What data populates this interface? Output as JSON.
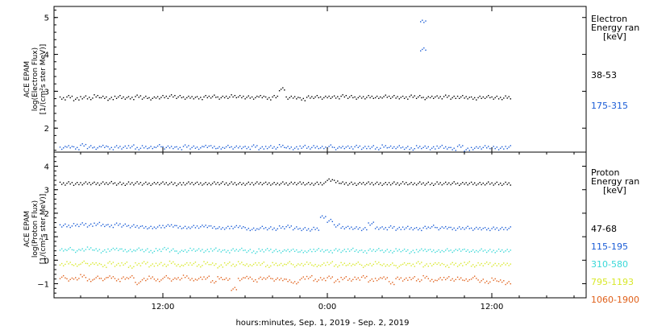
{
  "chart_data": [
    {
      "type": "scatter",
      "panel": "electron",
      "ylabel_lines": [
        "ACE EPAM",
        "log(Electron Flux)",
        "[1/(cm²s ster MeV)]"
      ],
      "ylim": [
        1.35,
        5.3
      ],
      "yticks": [
        2,
        3,
        4,
        5
      ],
      "legend": {
        "title_lines": [
          "Electron",
          "Energy ran",
          "[keV]"
        ],
        "placement": "right"
      },
      "series": [
        {
          "name": "38-53",
          "color": "#000000",
          "x": [
            0.0,
            0.5,
            1,
            1.5,
            2,
            2.5,
            3,
            3.5,
            4,
            4.5,
            5,
            5.5,
            6,
            6.5,
            7,
            7.5,
            8,
            8.5,
            9,
            9.5,
            10,
            10.5,
            11,
            11.5,
            12,
            12.5,
            13,
            13.5,
            14,
            14.5,
            15,
            15.5,
            16,
            16.5,
            17,
            17.5,
            18,
            18.5,
            19,
            19.5,
            20,
            20.5,
            21,
            21.5,
            22,
            22.5,
            23,
            23.5,
            24,
            24.5,
            25,
            25.5,
            26,
            26.5,
            27,
            27.5,
            28,
            28.5,
            29,
            29.5,
            30,
            30.5,
            31,
            31.5,
            32,
            32.5
          ],
          "y": [
            2.82,
            2.86,
            2.8,
            2.85,
            2.83,
            2.88,
            2.84,
            2.81,
            2.86,
            2.84,
            2.83,
            2.87,
            2.84,
            2.82,
            2.85,
            2.86,
            2.88,
            2.86,
            2.84,
            2.85,
            2.83,
            2.86,
            2.87,
            2.84,
            2.86,
            2.88,
            2.86,
            2.85,
            2.84,
            2.88,
            2.82,
            2.86,
            3.07,
            2.84,
            2.85,
            2.8,
            2.85,
            2.86,
            2.84,
            2.86,
            2.85,
            2.88,
            2.86,
            2.84,
            2.85,
            2.86,
            2.84,
            2.87,
            2.86,
            2.85,
            2.84,
            2.87,
            2.86,
            2.83,
            2.86,
            2.85,
            2.87,
            2.84,
            2.86,
            2.85,
            2.82,
            2.84,
            2.86,
            2.84,
            2.83,
            2.85
          ]
        },
        {
          "name": "175-315",
          "color": "#1a5cd6",
          "x": [
            0.0,
            0.5,
            1,
            1.5,
            2,
            2.5,
            3,
            3.5,
            4,
            4.5,
            5,
            5.5,
            6,
            6.5,
            7,
            7.5,
            8,
            8.5,
            9,
            9.5,
            10,
            10.5,
            11,
            11.5,
            12,
            12.5,
            13,
            13.5,
            14,
            14.5,
            15,
            15.5,
            16,
            16.5,
            17,
            17.5,
            18,
            18.5,
            19,
            19.5,
            20,
            20.5,
            21,
            21.5,
            22,
            22.5,
            23,
            23.5,
            24,
            24.5,
            25,
            25.5,
            26,
            26.5,
            27,
            27.5,
            28,
            28.5,
            29,
            29.5,
            30,
            30.5,
            31,
            31.5,
            32,
            32.5
          ],
          "y": [
            1.48,
            1.52,
            1.47,
            1.55,
            1.5,
            1.48,
            1.53,
            1.47,
            1.5,
            1.49,
            1.52,
            1.47,
            1.5,
            1.48,
            1.53,
            1.49,
            1.5,
            1.47,
            1.52,
            1.49,
            1.48,
            1.53,
            1.5,
            1.47,
            1.51,
            1.49,
            1.5,
            1.48,
            1.52,
            1.47,
            1.5,
            1.49,
            1.53,
            1.48,
            1.47,
            1.51,
            1.49,
            1.5,
            1.48,
            1.52,
            1.47,
            1.5,
            1.49,
            1.51,
            1.48,
            1.5,
            1.47,
            1.52,
            1.49,
            1.5,
            1.48,
            1.46,
            1.5,
            1.49,
            1.47,
            1.51,
            1.49,
            1.45,
            1.52,
            1.43,
            1.47,
            1.49,
            1.5,
            1.48,
            1.47,
            1.5
          ]
        },
        {
          "name": "",
          "color": "#1a5cd6",
          "x": [
            26.3,
            26.3
          ],
          "y": [
            4.9,
            4.15
          ]
        }
      ]
    },
    {
      "type": "scatter",
      "panel": "proton",
      "ylabel_lines": [
        "ACE EPAM",
        "log(Proton Flux)",
        "[1/(cm²s ster MeV)]"
      ],
      "ylim": [
        -1.6,
        4.6
      ],
      "yticks": [
        -1,
        0,
        1,
        2,
        3,
        4
      ],
      "xlabel": "hours:minutes, Sep.  1, 2019 - Sep.  2, 2019",
      "xticks": [
        {
          "hours": 6,
          "label": "12:00"
        },
        {
          "hours": 18,
          "label": "0:00"
        },
        {
          "hours": 30,
          "label": "12:00"
        }
      ],
      "xlim_hours": [
        0,
        30
      ],
      "data_hours_offset": 0,
      "legend": {
        "title_lines": [
          "Proton",
          "Energy ran",
          "[keV]"
        ],
        "placement": "right"
      },
      "series": [
        {
          "name": "47-68",
          "color": "#000000",
          "x": [
            0.0,
            0.5,
            1,
            1.5,
            2,
            2.5,
            3,
            3.5,
            4,
            4.5,
            5,
            5.5,
            6,
            6.5,
            7,
            7.5,
            8,
            8.5,
            9,
            9.5,
            10,
            10.5,
            11,
            11.5,
            12,
            12.5,
            13,
            13.5,
            14,
            14.5,
            15,
            15.5,
            16,
            16.5,
            17,
            17.5,
            18,
            18.5,
            19,
            19.5,
            20,
            20.5,
            21,
            21.5,
            22,
            22.5,
            23,
            23.5,
            24,
            24.5,
            25,
            25.5,
            26,
            26.5,
            27,
            27.5,
            28,
            28.5,
            29,
            29.5,
            30,
            30.5,
            31,
            31.5,
            32,
            32.5
          ],
          "y": [
            3.28,
            3.3,
            3.27,
            3.29,
            3.3,
            3.28,
            3.29,
            3.31,
            3.28,
            3.27,
            3.29,
            3.3,
            3.28,
            3.27,
            3.3,
            3.29,
            3.28,
            3.26,
            3.29,
            3.3,
            3.28,
            3.27,
            3.29,
            3.3,
            3.28,
            3.29,
            3.27,
            3.28,
            3.29,
            3.3,
            3.28,
            3.27,
            3.29,
            3.28,
            3.3,
            3.29,
            3.27,
            3.28,
            3.29,
            3.45,
            3.36,
            3.29,
            3.28,
            3.27,
            3.3,
            3.29,
            3.28,
            3.27,
            3.29,
            3.28,
            3.3,
            3.27,
            3.29,
            3.28,
            3.27,
            3.29,
            3.28,
            3.3,
            3.27,
            3.29,
            3.28,
            3.27,
            3.29,
            3.28,
            3.27,
            3.28
          ]
        },
        {
          "name": "115-195",
          "color": "#1a5cd6",
          "x": [
            0.0,
            0.5,
            1,
            1.5,
            2,
            2.5,
            3,
            3.5,
            4,
            4.5,
            5,
            5.5,
            6,
            6.5,
            7,
            7.5,
            8,
            8.5,
            9,
            9.5,
            10,
            10.5,
            11,
            11.5,
            12,
            12.5,
            13,
            13.5,
            14,
            14.5,
            15,
            15.5,
            16,
            16.5,
            17,
            17.5,
            18,
            18.5,
            19,
            19.5,
            20,
            20.5,
            21,
            21.5,
            22,
            22.5,
            23,
            23.5,
            24,
            24.5,
            25,
            25.5,
            26,
            26.5,
            27,
            27.5,
            28,
            28.5,
            29,
            29.5,
            30,
            30.5,
            31,
            31.5,
            32,
            32.5
          ],
          "y": [
            1.5,
            1.48,
            1.52,
            1.55,
            1.5,
            1.57,
            1.52,
            1.48,
            1.54,
            1.5,
            1.47,
            1.46,
            1.42,
            1.4,
            1.44,
            1.47,
            1.5,
            1.43,
            1.4,
            1.44,
            1.45,
            1.48,
            1.42,
            1.38,
            1.4,
            1.43,
            1.45,
            1.35,
            1.33,
            1.4,
            1.38,
            1.36,
            1.42,
            1.45,
            1.38,
            1.35,
            1.33,
            1.36,
            1.85,
            1.7,
            1.5,
            1.42,
            1.4,
            1.38,
            1.35,
            1.58,
            1.4,
            1.38,
            1.42,
            1.36,
            1.4,
            1.38,
            1.35,
            1.4,
            1.45,
            1.38,
            1.42,
            1.36,
            1.38,
            1.4,
            1.36,
            1.38,
            1.35,
            1.37,
            1.36,
            1.38
          ]
        },
        {
          "name": "310-580",
          "color": "#3ad8d8",
          "x": [
            0.0,
            0.5,
            1,
            1.5,
            2,
            2.5,
            3,
            3.5,
            4,
            4.5,
            5,
            5.5,
            6,
            6.5,
            7,
            7.5,
            8,
            8.5,
            9,
            9.5,
            10,
            10.5,
            11,
            11.5,
            12,
            12.5,
            13,
            13.5,
            14,
            14.5,
            15,
            15.5,
            16,
            16.5,
            17,
            17.5,
            18,
            18.5,
            19,
            19.5,
            20,
            20.5,
            21,
            21.5,
            22,
            22.5,
            23,
            23.5,
            24,
            24.5,
            25,
            25.5,
            26,
            26.5,
            27,
            27.5,
            28,
            28.5,
            29,
            29.5,
            30,
            30.5,
            31,
            31.5,
            32,
            32.5
          ],
          "y": [
            0.45,
            0.5,
            0.42,
            0.48,
            0.52,
            0.45,
            0.4,
            0.47,
            0.5,
            0.44,
            0.42,
            0.48,
            0.45,
            0.4,
            0.46,
            0.5,
            0.44,
            0.38,
            0.43,
            0.47,
            0.45,
            0.42,
            0.48,
            0.44,
            0.4,
            0.45,
            0.47,
            0.42,
            0.38,
            0.44,
            0.46,
            0.42,
            0.4,
            0.45,
            0.43,
            0.38,
            0.42,
            0.46,
            0.44,
            0.4,
            0.45,
            0.42,
            0.47,
            0.43,
            0.39,
            0.44,
            0.46,
            0.42,
            0.4,
            0.45,
            0.43,
            0.38,
            0.44,
            0.46,
            0.42,
            0.4,
            0.45,
            0.42,
            0.47,
            0.43,
            0.4,
            0.44,
            0.42,
            0.41,
            0.43,
            0.42
          ]
        },
        {
          "name": "795-1193",
          "color": "#d8e82a",
          "x": [
            0.0,
            0.5,
            1,
            1.5,
            2,
            2.5,
            3,
            3.5,
            4,
            4.5,
            5,
            5.5,
            6,
            6.5,
            7,
            7.5,
            8,
            8.5,
            9,
            9.5,
            10,
            10.5,
            11,
            11.5,
            12,
            12.5,
            13,
            13.5,
            14,
            14.5,
            15,
            15.5,
            16,
            16.5,
            17,
            17.5,
            18,
            18.5,
            19,
            19.5,
            20,
            20.5,
            21,
            21.5,
            22,
            22.5,
            23,
            23.5,
            24,
            24.5,
            25,
            25.5,
            26,
            26.5,
            27,
            27.5,
            28,
            28.5,
            29,
            29.5,
            30,
            30.5,
            31,
            31.5,
            32,
            32.5
          ],
          "y": [
            -0.15,
            -0.1,
            -0.2,
            -0.08,
            -0.15,
            -0.12,
            -0.22,
            -0.1,
            -0.18,
            -0.12,
            -0.25,
            -0.15,
            -0.1,
            -0.2,
            -0.14,
            -0.18,
            -0.08,
            -0.22,
            -0.15,
            -0.12,
            -0.2,
            -0.1,
            -0.16,
            -0.24,
            -0.12,
            -0.18,
            -0.1,
            -0.2,
            -0.15,
            -0.12,
            -0.22,
            -0.14,
            -0.18,
            -0.1,
            -0.2,
            -0.15,
            -0.12,
            -0.22,
            -0.16,
            -0.1,
            -0.2,
            -0.14,
            -0.18,
            -0.12,
            -0.22,
            -0.15,
            -0.1,
            -0.2,
            -0.16,
            -0.24,
            -0.12,
            -0.18,
            -0.1,
            -0.2,
            -0.15,
            -0.12,
            -0.22,
            -0.14,
            -0.18,
            -0.1,
            -0.2,
            -0.15,
            -0.12,
            -0.18,
            -0.16,
            -0.14
          ]
        },
        {
          "name": "1060-1900",
          "color": "#e0601a",
          "x": [
            0.0,
            0.5,
            1,
            1.5,
            2,
            2.5,
            3,
            3.5,
            4,
            4.5,
            5,
            5.5,
            6,
            6.5,
            7,
            7.5,
            8,
            8.5,
            9,
            9.5,
            10,
            10.5,
            11,
            11.5,
            12,
            12.5,
            13,
            13.5,
            14,
            14.5,
            15,
            15.5,
            16,
            16.5,
            17,
            17.5,
            18,
            18.5,
            19,
            19.5,
            20,
            20.5,
            21,
            21.5,
            22,
            22.5,
            23,
            23.5,
            24,
            24.5,
            25,
            25.5,
            26,
            26.5,
            27,
            27.5,
            28,
            28.5,
            29,
            29.5,
            30,
            30.5,
            31,
            31.5,
            32,
            32.5
          ],
          "y": [
            -0.7,
            -0.8,
            -0.75,
            -0.65,
            -0.85,
            -0.72,
            -0.78,
            -0.68,
            -0.82,
            -0.75,
            -0.7,
            -0.95,
            -0.78,
            -0.72,
            -0.85,
            -0.7,
            -0.8,
            -0.75,
            -0.68,
            -0.82,
            -0.76,
            -0.72,
            -0.88,
            -0.74,
            -0.8,
            -1.2,
            -0.78,
            -0.7,
            -0.84,
            -0.76,
            -0.72,
            -0.8,
            -0.78,
            -0.85,
            -0.95,
            -0.75,
            -0.7,
            -0.82,
            -0.78,
            -0.72,
            -0.86,
            -0.74,
            -0.8,
            -0.76,
            -0.7,
            -0.84,
            -0.78,
            -0.72,
            -0.95,
            -0.76,
            -0.8,
            -0.74,
            -0.82,
            -0.7,
            -0.86,
            -0.78,
            -0.74,
            -0.8,
            -0.76,
            -0.84,
            -0.72,
            -0.85,
            -0.9,
            -0.8,
            -0.88,
            -0.95
          ]
        }
      ]
    }
  ]
}
